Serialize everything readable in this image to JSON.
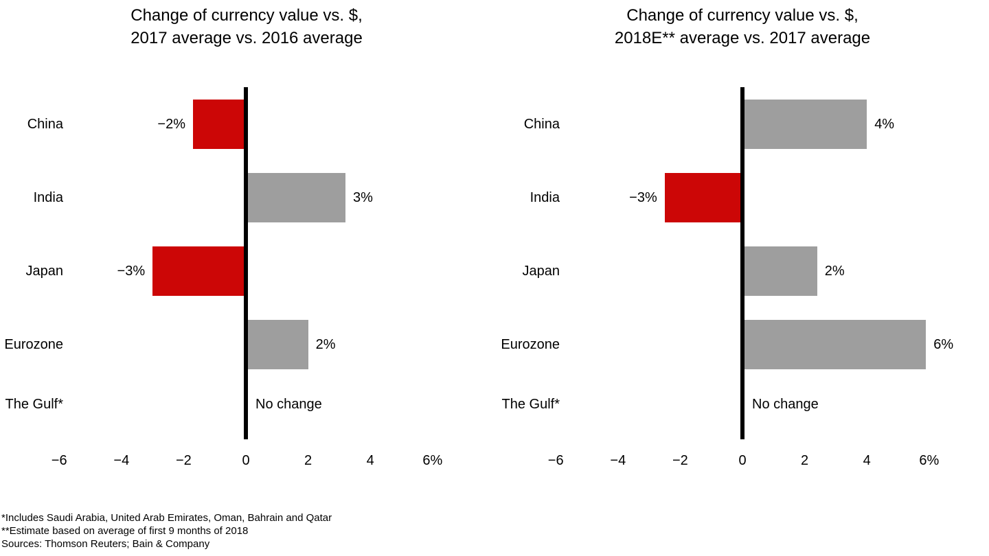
{
  "figure": {
    "background_color": "#ffffff",
    "text_color": "#000000",
    "axis_color": "#000000"
  },
  "chart_data": [
    {
      "type": "bar",
      "orientation": "horizontal",
      "title": "Change of currency value vs. $, 2017 average vs. 2016 average",
      "title_lines": [
        "Change of currency value vs. $,",
        "2017 average vs. 2016 average"
      ],
      "categories": [
        "China",
        "India",
        "Japan",
        "Eurozone",
        "The Gulf*"
      ],
      "values": [
        -1.7,
        3.2,
        -3.0,
        2.0,
        0
      ],
      "value_labels": [
        "−2%",
        "3%",
        "−3%",
        "2%",
        "No change"
      ],
      "xlim": [
        -6,
        6
      ],
      "xticks": [
        -6,
        -4,
        -2,
        0,
        2,
        4,
        6
      ],
      "xtick_labels": [
        "−6",
        "−4",
        "−2",
        "0",
        "2",
        "4",
        "6%"
      ],
      "grid": false,
      "legend": false,
      "negative_color": "#cc0606",
      "positive_color": "#9e9e9e"
    },
    {
      "type": "bar",
      "orientation": "horizontal",
      "title": "Change of currency value vs. $, 2018E** average vs. 2017 average",
      "title_lines": [
        "Change of currency value vs. $,",
        "2018E** average vs. 2017 average"
      ],
      "categories": [
        "China",
        "India",
        "Japan",
        "Eurozone",
        "The Gulf*"
      ],
      "values": [
        4.0,
        -2.5,
        2.4,
        5.9,
        0
      ],
      "value_labels": [
        "4%",
        "−3%",
        "2%",
        "6%",
        "No change"
      ],
      "xlim": [
        -6,
        6
      ],
      "xticks": [
        -6,
        -4,
        -2,
        0,
        2,
        4,
        6
      ],
      "xtick_labels": [
        "−6",
        "−4",
        "−2",
        "0",
        "2",
        "4",
        "6%"
      ],
      "grid": false,
      "legend": false,
      "negative_color": "#cc0606",
      "positive_color": "#9e9e9e"
    }
  ],
  "footnotes": [
    "*Includes Saudi Arabia, United Arab Emirates, Oman, Bahrain and Qatar",
    "**Estimate based on average of first 9 months of 2018",
    "Sources: Thomson Reuters; Bain & Company"
  ]
}
